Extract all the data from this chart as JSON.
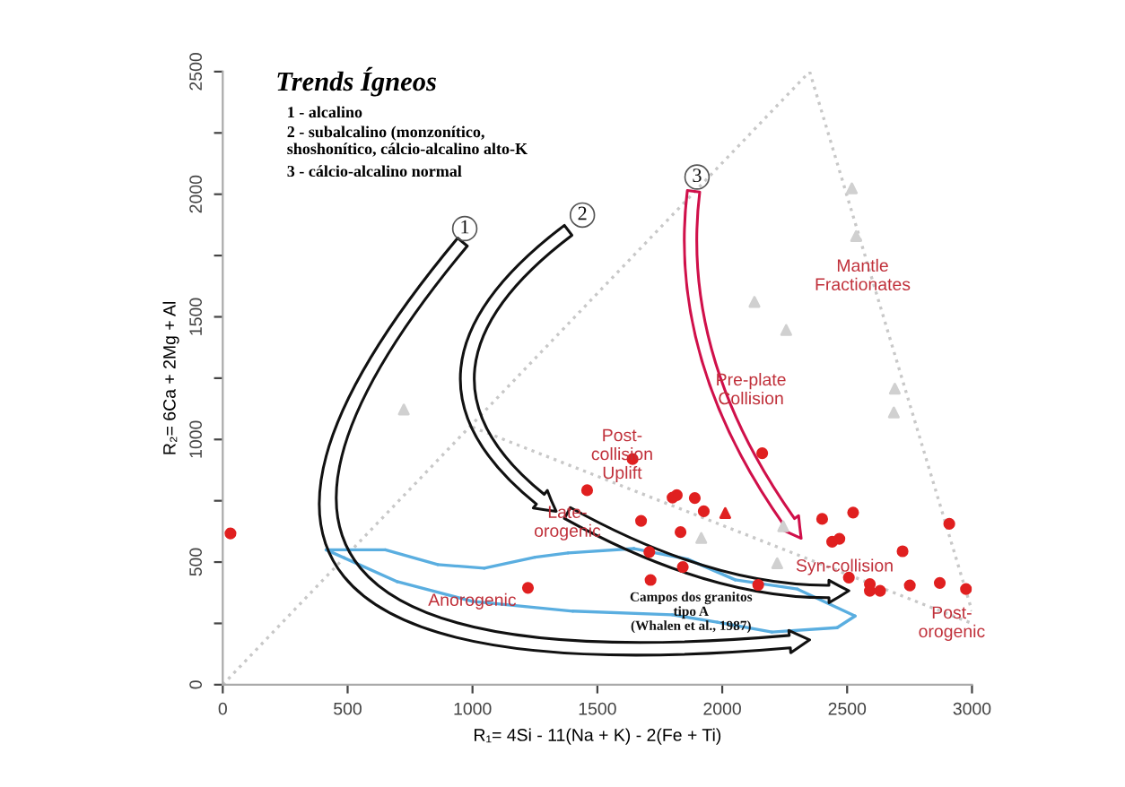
{
  "chart_data": {
    "type": "scatter",
    "title": "Trends Ígneos",
    "xlabel": "R₁= 4Si - 11(Na + K) - 2(Fe + Ti)",
    "ylabel": "R₂= 6Ca + 2Mg + Al",
    "xlim": [
      0,
      3000
    ],
    "xticks": [
      0,
      500,
      1000,
      1500,
      2000,
      2500,
      3000
    ],
    "ylim": [
      0,
      2500
    ],
    "yticks": [
      0,
      {
        "value": 250,
        "label": null
      },
      500,
      {
        "value": 750,
        "label": null
      },
      1000,
      {
        "value": 1250,
        "label": null
      },
      1500,
      {
        "value": 1750,
        "label": null
      },
      2000,
      {
        "value": 2250,
        "label": null
      },
      2500
    ],
    "grid": false,
    "legend": false,
    "series": [
      {
        "type": "line",
        "color": "#c8c8c8",
        "line_style": "dotted",
        "marker": "none",
        "x": [
          0,
          2350
        ],
        "values": [
          0,
          2500
        ]
      },
      {
        "type": "line",
        "color": "#c8c8c8",
        "line_style": "dotted",
        "marker": "none",
        "x": [
          2350,
          3000
        ],
        "values": [
          2500,
          300
        ]
      },
      {
        "type": "line",
        "color": "#c8c8c8",
        "line_style": "dotted",
        "marker": "none",
        "x": [
          1000,
          3000
        ],
        "values": [
          1050,
          250
        ]
      },
      {
        "color": "#d0d0d0",
        "marker": "triangle",
        "x": [
          2519,
          2536,
          2129,
          2256,
          2691,
          2687,
          725,
          1916,
          2220,
          2244
        ],
        "values": [
          2024,
          1829,
          1561,
          1446,
          1207,
          1110,
          1122,
          598,
          495,
          646
        ]
      },
      {
        "color": "#e02020",
        "marker": "circle",
        "x": [
          31,
          1222,
          1459,
          1641,
          1675,
          1801,
          1818,
          1890,
          1926,
          1833,
          1708,
          1842,
          1713,
          2144,
          2400,
          2524,
          2440,
          2469,
          2507,
          2591,
          2591,
          2632,
          2722,
          2751,
          2871,
          2909,
          2976,
          2160
        ],
        "values": [
          617,
          395,
          793,
          920,
          668,
          763,
          773,
          761,
          707,
          622,
          541,
          480,
          427,
          407,
          676,
          702,
          583,
          595,
          437,
          410,
          383,
          383,
          544,
          405,
          415,
          656,
          390,
          944
        ]
      },
      {
        "color": "#e02020",
        "marker": "triangle",
        "x": [
          2012
        ],
        "values": [
          700
        ]
      }
    ],
    "annotations": [
      "1 - alcalino",
      "2 - subalcalino (monzonítico,\nshoshonítico, cálcio-alcalino alto-K",
      "3 - cálcio-alcalino normal",
      "Mantle\nFractionates",
      "Pre-plate\nCollision",
      "Post-\ncollision\nUplift",
      "Late-\norogenic",
      "Syn-collision",
      "Post-\norogenic",
      "Anorogenic",
      "Campos dos granitos\ntipo A\n(Whalen et al., 1987)",
      "1",
      "2",
      "3"
    ]
  }
}
